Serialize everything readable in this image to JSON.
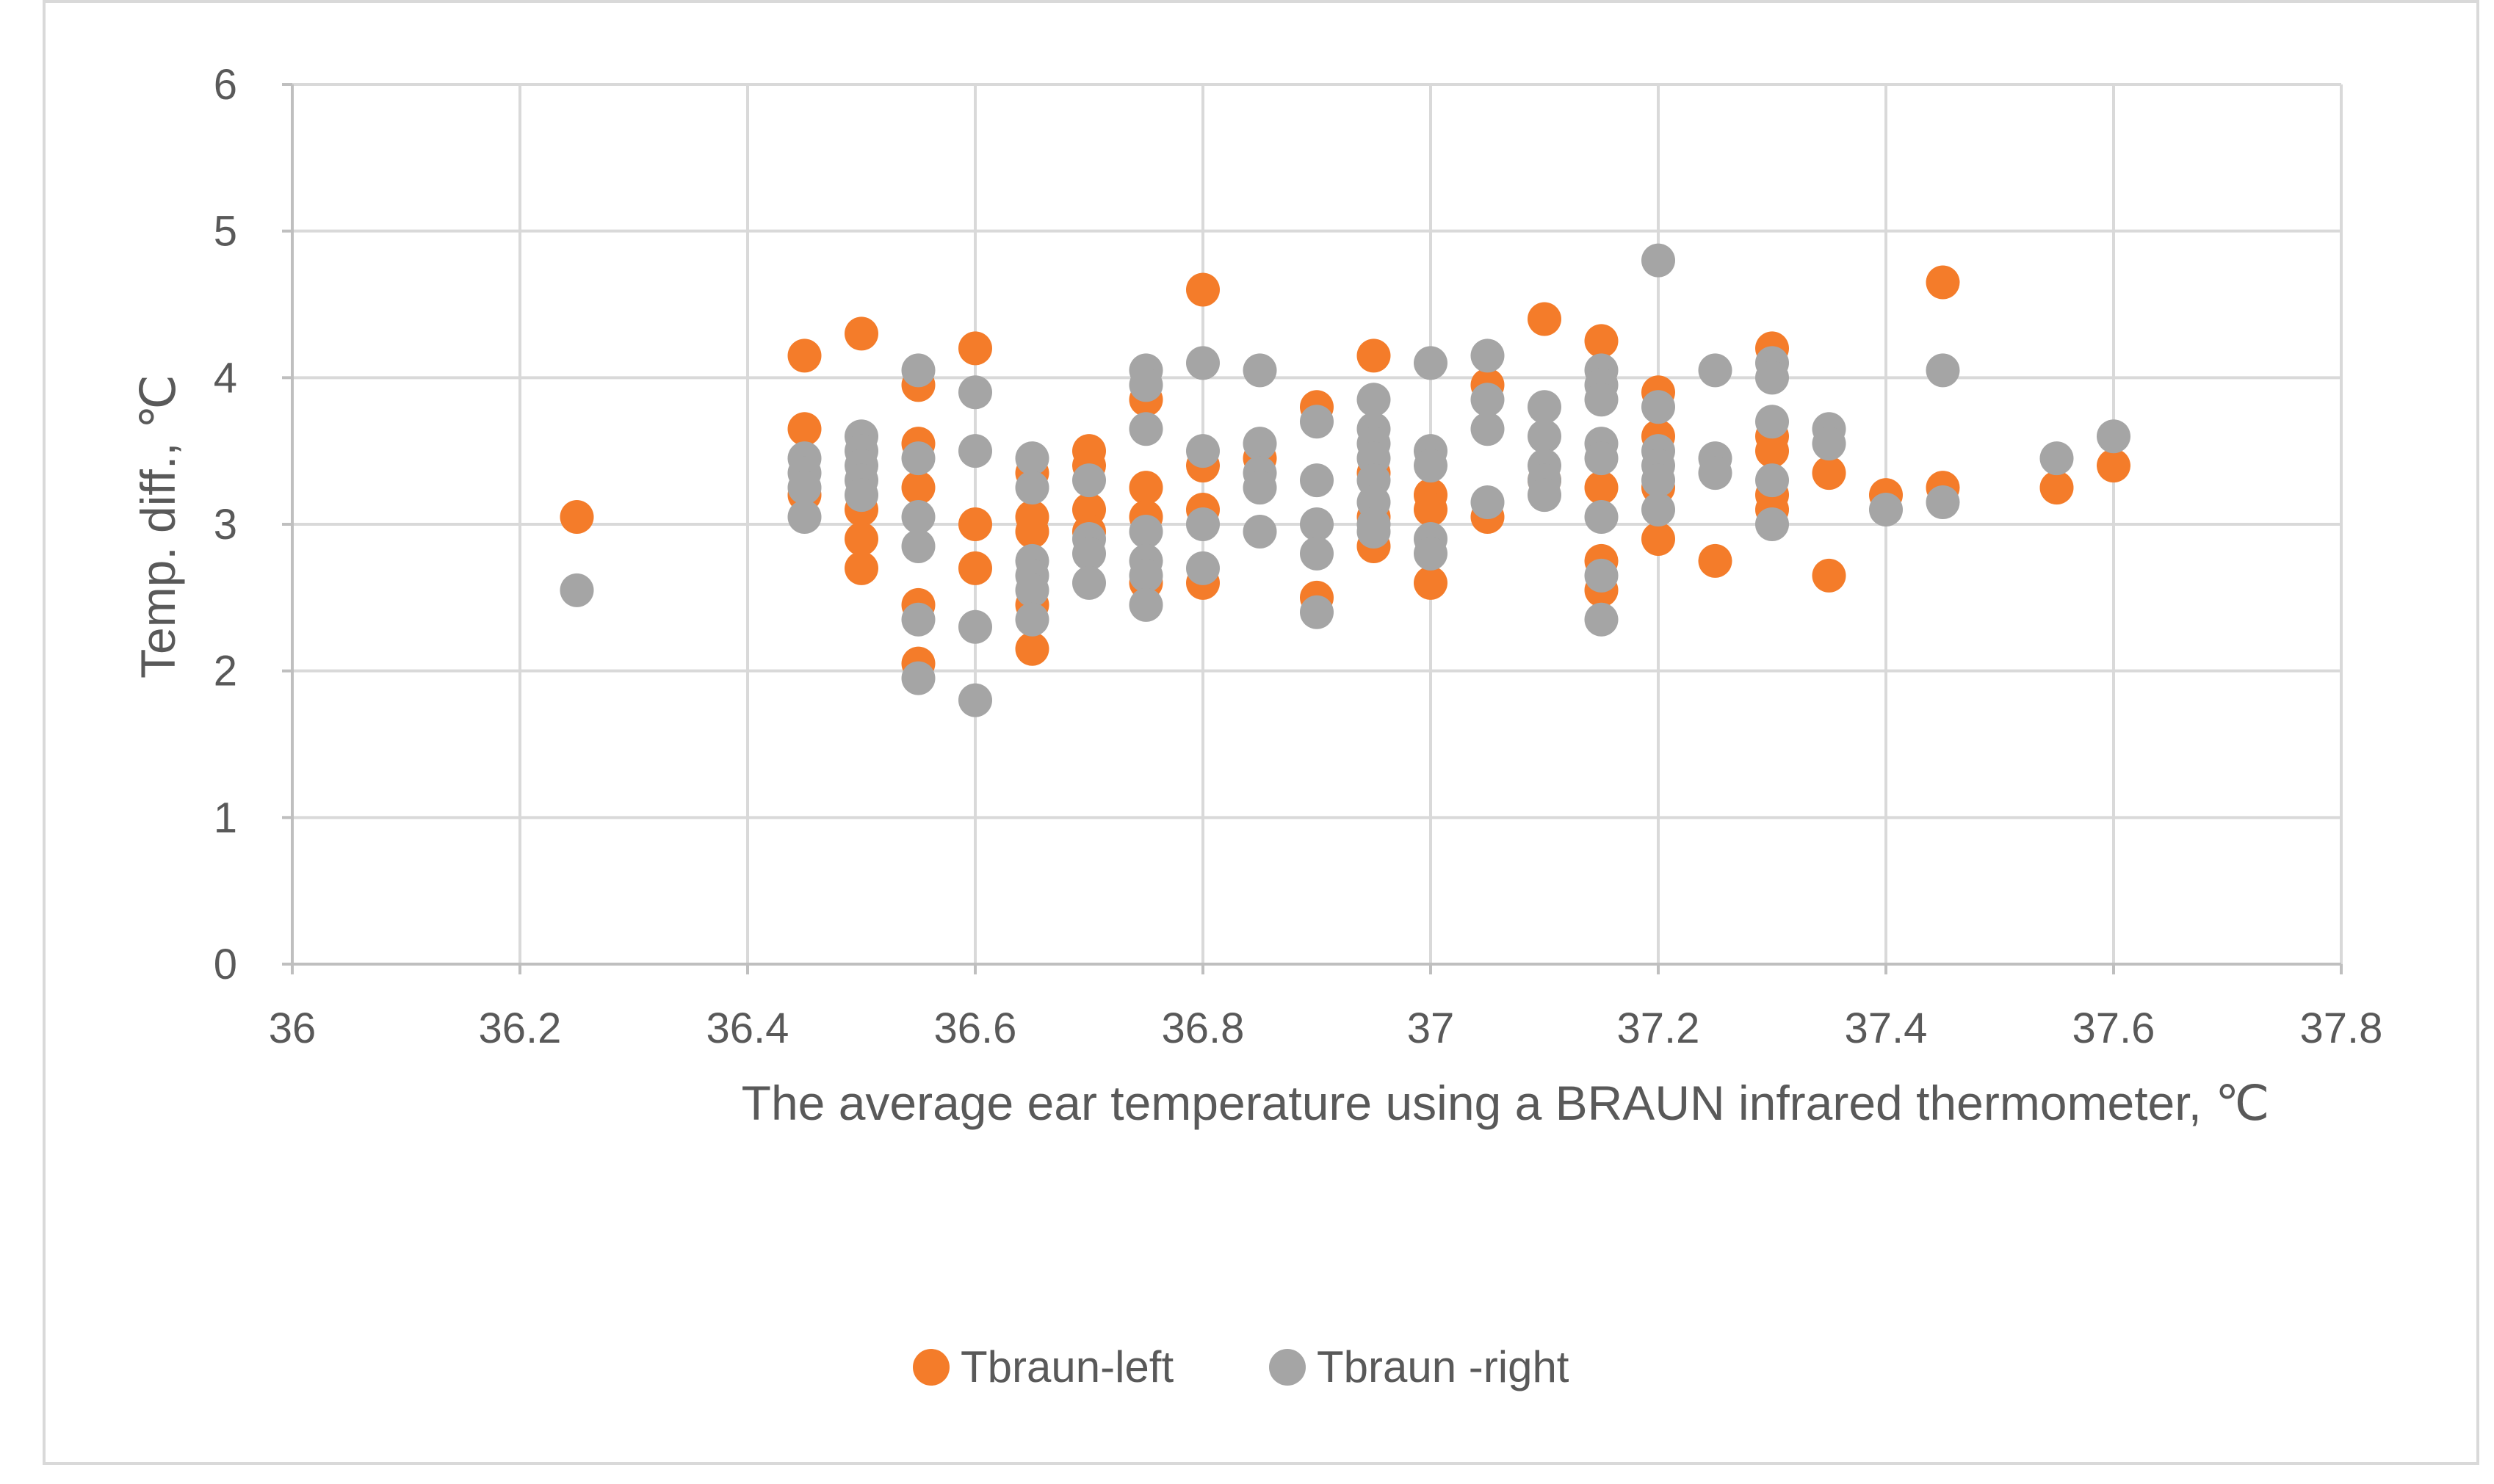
{
  "chart_data": {
    "type": "scatter",
    "xlabel": "The average ear temperature using a BRAUN infrared thermometer, ℃",
    "ylabel": "Temp. diff., ℃",
    "xlim": [
      36,
      37.8
    ],
    "ylim": [
      0,
      6
    ],
    "x_ticks": [
      "36",
      "36.2",
      "36.4",
      "36.6",
      "36.8",
      "37",
      "37.2",
      "37.4",
      "37.6",
      "37.8"
    ],
    "y_ticks": [
      "0",
      "1",
      "2",
      "3",
      "4",
      "5",
      "6"
    ],
    "grid": "major gridlines on both axes",
    "legend": "bottom-center",
    "series": [
      {
        "name": "Tbraun-left",
        "color": "#f47c2a",
        "points": [
          [
            36.25,
            3.05
          ],
          [
            36.45,
            4.15
          ],
          [
            36.45,
            3.65
          ],
          [
            36.45,
            3.2
          ],
          [
            36.5,
            4.3
          ],
          [
            36.5,
            3.1
          ],
          [
            36.5,
            2.9
          ],
          [
            36.5,
            2.7
          ],
          [
            36.55,
            3.95
          ],
          [
            36.55,
            3.55
          ],
          [
            36.55,
            3.25
          ],
          [
            36.55,
            2.45
          ],
          [
            36.55,
            2.05
          ],
          [
            36.6,
            4.2
          ],
          [
            36.6,
            3.0
          ],
          [
            36.6,
            2.7
          ],
          [
            36.65,
            3.35
          ],
          [
            36.65,
            3.05
          ],
          [
            36.65,
            2.95
          ],
          [
            36.65,
            2.45
          ],
          [
            36.65,
            2.15
          ],
          [
            36.7,
            3.5
          ],
          [
            36.7,
            3.4
          ],
          [
            36.7,
            3.1
          ],
          [
            36.7,
            2.95
          ],
          [
            36.75,
            3.85
          ],
          [
            36.75,
            3.25
          ],
          [
            36.75,
            3.05
          ],
          [
            36.75,
            2.6
          ],
          [
            36.8,
            4.6
          ],
          [
            36.8,
            3.4
          ],
          [
            36.8,
            3.1
          ],
          [
            36.8,
            2.6
          ],
          [
            36.85,
            3.45
          ],
          [
            36.9,
            3.8
          ],
          [
            36.9,
            2.5
          ],
          [
            36.95,
            4.15
          ],
          [
            36.95,
            3.35
          ],
          [
            36.95,
            3.05
          ],
          [
            36.95,
            2.85
          ],
          [
            37.0,
            3.2
          ],
          [
            37.0,
            3.1
          ],
          [
            37.0,
            2.6
          ],
          [
            37.05,
            3.95
          ],
          [
            37.05,
            3.05
          ],
          [
            37.1,
            4.4
          ],
          [
            37.1,
            3.3
          ],
          [
            37.15,
            4.25
          ],
          [
            37.15,
            3.25
          ],
          [
            37.15,
            2.75
          ],
          [
            37.15,
            2.55
          ],
          [
            37.2,
            3.9
          ],
          [
            37.2,
            3.6
          ],
          [
            37.2,
            3.25
          ],
          [
            37.2,
            2.9
          ],
          [
            37.25,
            2.75
          ],
          [
            37.3,
            4.2
          ],
          [
            37.3,
            3.6
          ],
          [
            37.3,
            3.5
          ],
          [
            37.3,
            3.2
          ],
          [
            37.3,
            3.1
          ],
          [
            37.35,
            3.35
          ],
          [
            37.35,
            2.65
          ],
          [
            37.4,
            3.2
          ],
          [
            37.45,
            4.65
          ],
          [
            37.45,
            3.25
          ],
          [
            37.55,
            3.25
          ],
          [
            37.6,
            3.4
          ]
        ]
      },
      {
        "name": "Tbraun -right",
        "color": "#a5a5a5",
        "points": [
          [
            36.25,
            2.55
          ],
          [
            36.45,
            3.45
          ],
          [
            36.45,
            3.35
          ],
          [
            36.45,
            3.25
          ],
          [
            36.45,
            3.05
          ],
          [
            36.5,
            3.6
          ],
          [
            36.5,
            3.5
          ],
          [
            36.5,
            3.4
          ],
          [
            36.5,
            3.3
          ],
          [
            36.5,
            3.2
          ],
          [
            36.55,
            4.05
          ],
          [
            36.55,
            3.45
          ],
          [
            36.55,
            3.05
          ],
          [
            36.55,
            2.85
          ],
          [
            36.55,
            2.35
          ],
          [
            36.55,
            1.95
          ],
          [
            36.6,
            3.9
          ],
          [
            36.6,
            3.5
          ],
          [
            36.6,
            2.3
          ],
          [
            36.6,
            1.8
          ],
          [
            36.65,
            3.45
          ],
          [
            36.65,
            3.25
          ],
          [
            36.65,
            2.75
          ],
          [
            36.65,
            2.65
          ],
          [
            36.65,
            2.55
          ],
          [
            36.65,
            2.35
          ],
          [
            36.7,
            3.3
          ],
          [
            36.7,
            2.9
          ],
          [
            36.7,
            2.8
          ],
          [
            36.7,
            2.6
          ],
          [
            36.75,
            4.05
          ],
          [
            36.75,
            3.95
          ],
          [
            36.75,
            3.65
          ],
          [
            36.75,
            2.95
          ],
          [
            36.75,
            2.75
          ],
          [
            36.75,
            2.65
          ],
          [
            36.75,
            2.45
          ],
          [
            36.8,
            4.1
          ],
          [
            36.8,
            3.5
          ],
          [
            36.8,
            3.0
          ],
          [
            36.8,
            2.7
          ],
          [
            36.85,
            4.05
          ],
          [
            36.85,
            3.55
          ],
          [
            36.85,
            3.35
          ],
          [
            36.85,
            3.25
          ],
          [
            36.85,
            2.95
          ],
          [
            36.9,
            3.7
          ],
          [
            36.9,
            3.3
          ],
          [
            36.9,
            3.0
          ],
          [
            36.9,
            2.8
          ],
          [
            36.9,
            2.4
          ],
          [
            36.95,
            3.85
          ],
          [
            36.95,
            3.65
          ],
          [
            36.95,
            3.55
          ],
          [
            36.95,
            3.45
          ],
          [
            36.95,
            3.3
          ],
          [
            36.95,
            3.15
          ],
          [
            36.95,
            3.0
          ],
          [
            36.95,
            2.95
          ],
          [
            37.0,
            4.1
          ],
          [
            37.0,
            3.5
          ],
          [
            37.0,
            3.4
          ],
          [
            37.0,
            2.9
          ],
          [
            37.0,
            2.8
          ],
          [
            37.05,
            4.15
          ],
          [
            37.05,
            3.85
          ],
          [
            37.05,
            3.65
          ],
          [
            37.05,
            3.15
          ],
          [
            37.1,
            3.8
          ],
          [
            37.1,
            3.6
          ],
          [
            37.1,
            3.4
          ],
          [
            37.1,
            3.3
          ],
          [
            37.1,
            3.2
          ],
          [
            37.15,
            4.05
          ],
          [
            37.15,
            3.95
          ],
          [
            37.15,
            3.85
          ],
          [
            37.15,
            3.55
          ],
          [
            37.15,
            3.45
          ],
          [
            37.15,
            3.05
          ],
          [
            37.15,
            2.65
          ],
          [
            37.15,
            2.35
          ],
          [
            37.2,
            4.8
          ],
          [
            37.2,
            3.8
          ],
          [
            37.2,
            3.5
          ],
          [
            37.2,
            3.4
          ],
          [
            37.2,
            3.3
          ],
          [
            37.2,
            3.1
          ],
          [
            37.25,
            4.05
          ],
          [
            37.25,
            3.45
          ],
          [
            37.25,
            3.35
          ],
          [
            37.3,
            4.1
          ],
          [
            37.3,
            4.0
          ],
          [
            37.3,
            3.7
          ],
          [
            37.3,
            3.3
          ],
          [
            37.3,
            3.0
          ],
          [
            37.35,
            3.65
          ],
          [
            37.35,
            3.55
          ],
          [
            37.4,
            3.1
          ],
          [
            37.45,
            4.05
          ],
          [
            37.45,
            3.15
          ],
          [
            37.55,
            3.45
          ],
          [
            37.6,
            3.6
          ]
        ]
      }
    ]
  }
}
